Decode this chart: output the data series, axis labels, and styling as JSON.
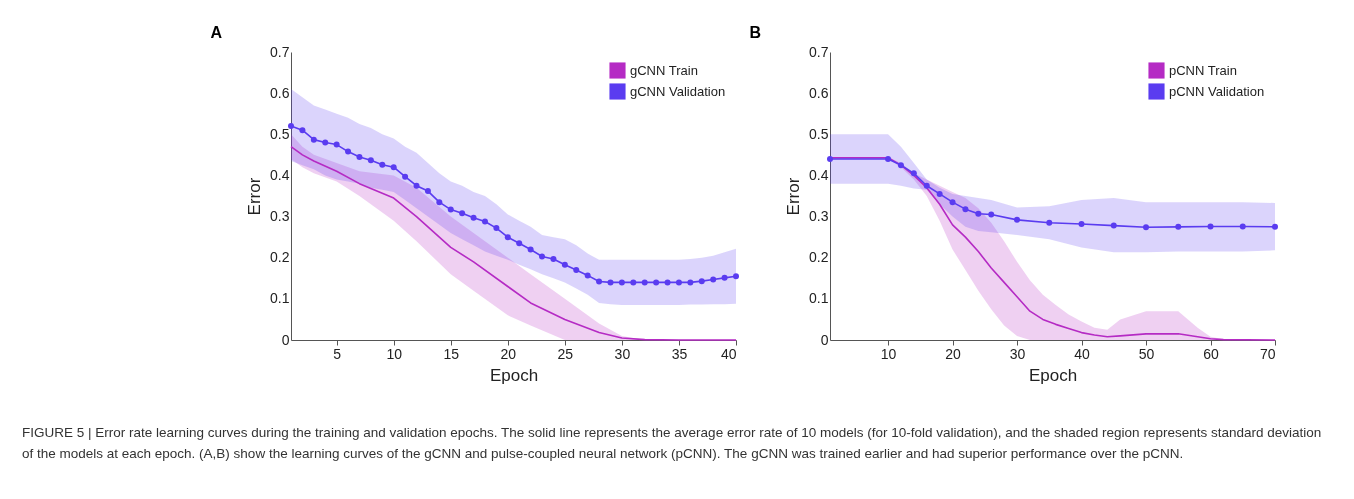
{
  "chart_data": [
    {
      "type": "line",
      "title": "A",
      "xlabel": "Epoch",
      "ylabel": "Error",
      "xlim": [
        1,
        40
      ],
      "xticks": [
        5,
        10,
        15,
        20,
        25,
        30,
        35,
        40
      ],
      "ylim": [
        0,
        0.7
      ],
      "yticks": [
        0,
        0.1,
        0.2,
        0.3,
        0.4,
        0.5,
        0.6,
        0.7
      ],
      "grid": false,
      "legend": "top right",
      "line_style": "solid",
      "annotations": [
        "FIGURE 5 | Error rate learning curves during the training and validation epochs. The solid line represents the average error rate of 10 models (for 10-fold validation), and the shaded region represents standard deviation of the models at each epoch. (A,B) show the learning curves of the gCNN and pulse-coupled neural network (pCNN). The gCNN was trained earlier and had superior performance over the pCNN."
      ],
      "series": [
        {
          "name": "gCNN Train",
          "color": "#b52bc4",
          "marker": "none",
          "x": [
            1,
            2,
            3,
            5,
            7,
            10,
            12,
            15,
            17,
            20,
            22,
            25,
            28,
            30,
            32,
            35,
            40
          ],
          "values": [
            0.47,
            0.45,
            0.435,
            0.41,
            0.38,
            0.345,
            0.3,
            0.225,
            0.19,
            0.13,
            0.09,
            0.05,
            0.018,
            0.005,
            0.001,
            0,
            0
          ],
          "lower": [
            0.44,
            0.42,
            0.405,
            0.385,
            0.35,
            0.29,
            0.24,
            0.16,
            0.12,
            0.06,
            0.035,
            0,
            0,
            0,
            0,
            0,
            0
          ],
          "upper": [
            0.5,
            0.47,
            0.45,
            0.43,
            0.41,
            0.4,
            0.37,
            0.3,
            0.26,
            0.2,
            0.16,
            0.1,
            0.04,
            0.01,
            0,
            0,
            0
          ]
        },
        {
          "name": "gCNN Validation",
          "color": "#5a3cf0",
          "marker": "circle",
          "x": [
            1,
            2,
            3,
            4,
            5,
            6,
            7,
            8,
            9,
            10,
            11,
            12,
            13,
            14,
            15,
            16,
            17,
            18,
            19,
            20,
            21,
            22,
            23,
            24,
            25,
            26,
            27,
            28,
            29,
            30,
            31,
            32,
            33,
            34,
            35,
            36,
            37,
            38,
            39,
            40
          ],
          "values": [
            0.52,
            0.51,
            0.487,
            0.48,
            0.475,
            0.458,
            0.445,
            0.437,
            0.426,
            0.42,
            0.397,
            0.375,
            0.362,
            0.335,
            0.317,
            0.308,
            0.297,
            0.288,
            0.272,
            0.25,
            0.235,
            0.22,
            0.203,
            0.197,
            0.183,
            0.17,
            0.157,
            0.142,
            0.14,
            0.14,
            0.14,
            0.14,
            0.14,
            0.14,
            0.14,
            0.14,
            0.143,
            0.147,
            0.151,
            0.155
          ],
          "lower": [
            0.435,
            0.425,
            0.415,
            0.4,
            0.39,
            0.385,
            0.38,
            0.37,
            0.365,
            0.36,
            0.34,
            0.32,
            0.3,
            0.28,
            0.26,
            0.245,
            0.23,
            0.215,
            0.205,
            0.195,
            0.183,
            0.172,
            0.16,
            0.15,
            0.14,
            0.125,
            0.11,
            0.09,
            0.087,
            0.085,
            0.085,
            0.085,
            0.085,
            0.085,
            0.085,
            0.086,
            0.086,
            0.087,
            0.087,
            0.088
          ],
          "upper": [
            0.61,
            0.59,
            0.57,
            0.56,
            0.55,
            0.54,
            0.525,
            0.515,
            0.5,
            0.49,
            0.47,
            0.455,
            0.43,
            0.405,
            0.385,
            0.375,
            0.36,
            0.35,
            0.33,
            0.305,
            0.29,
            0.275,
            0.255,
            0.25,
            0.245,
            0.23,
            0.21,
            0.195,
            0.195,
            0.195,
            0.195,
            0.195,
            0.195,
            0.195,
            0.195,
            0.197,
            0.2,
            0.205,
            0.213,
            0.222
          ]
        }
      ]
    },
    {
      "type": "line",
      "title": "B",
      "xlabel": "Epoch",
      "ylabel": "Error",
      "xlim": [
        1,
        70
      ],
      "xticks": [
        10,
        20,
        30,
        40,
        50,
        60,
        70
      ],
      "ylim": [
        0,
        0.7
      ],
      "yticks": [
        0,
        0.1,
        0.2,
        0.3,
        0.4,
        0.5,
        0.6,
        0.7
      ],
      "grid": false,
      "legend": "top right",
      "line_style": "solid",
      "series": [
        {
          "name": "pCNN Train",
          "color": "#b52bc4",
          "marker": "none",
          "x": [
            1,
            10,
            12,
            14,
            16,
            18,
            20,
            22,
            24,
            26,
            28,
            30,
            32,
            34,
            36,
            38,
            40,
            42,
            44,
            46,
            50,
            55,
            58,
            60,
            62,
            70
          ],
          "values": [
            0.443,
            0.443,
            0.425,
            0.4,
            0.37,
            0.33,
            0.28,
            0.25,
            0.215,
            0.175,
            0.14,
            0.105,
            0.07,
            0.05,
            0.038,
            0.028,
            0.018,
            0.012,
            0.008,
            0.01,
            0.015,
            0.015,
            0.008,
            0.003,
            0.001,
            0
          ],
          "lower": [
            0.44,
            0.44,
            0.42,
            0.39,
            0.35,
            0.29,
            0.22,
            0.17,
            0.12,
            0.075,
            0.035,
            0.01,
            0,
            0,
            0,
            0,
            0,
            0,
            0,
            0,
            0,
            0,
            0,
            0,
            0,
            0
          ],
          "upper": [
            0.445,
            0.445,
            0.43,
            0.405,
            0.39,
            0.375,
            0.36,
            0.345,
            0.32,
            0.285,
            0.24,
            0.19,
            0.145,
            0.11,
            0.085,
            0.062,
            0.045,
            0.03,
            0.025,
            0.05,
            0.07,
            0.07,
            0.03,
            0.008,
            0.002,
            0
          ]
        },
        {
          "name": "pCNN Validation",
          "color": "#5a3cf0",
          "marker": "circle",
          "x": [
            1,
            10,
            12,
            14,
            16,
            18,
            20,
            22,
            24,
            26,
            30,
            35,
            40,
            45,
            50,
            55,
            60,
            65,
            70
          ],
          "values": [
            0.44,
            0.44,
            0.425,
            0.405,
            0.375,
            0.355,
            0.335,
            0.318,
            0.307,
            0.305,
            0.292,
            0.285,
            0.282,
            0.278,
            0.274,
            0.275,
            0.276,
            0.276,
            0.275
          ],
          "lower": [
            0.38,
            0.38,
            0.375,
            0.368,
            0.365,
            0.33,
            0.3,
            0.275,
            0.265,
            0.262,
            0.255,
            0.245,
            0.225,
            0.213,
            0.213,
            0.215,
            0.215,
            0.215,
            0.218
          ],
          "upper": [
            0.5,
            0.5,
            0.47,
            0.43,
            0.39,
            0.37,
            0.355,
            0.35,
            0.345,
            0.34,
            0.322,
            0.325,
            0.34,
            0.345,
            0.335,
            0.335,
            0.335,
            0.335,
            0.333
          ]
        }
      ]
    }
  ]
}
